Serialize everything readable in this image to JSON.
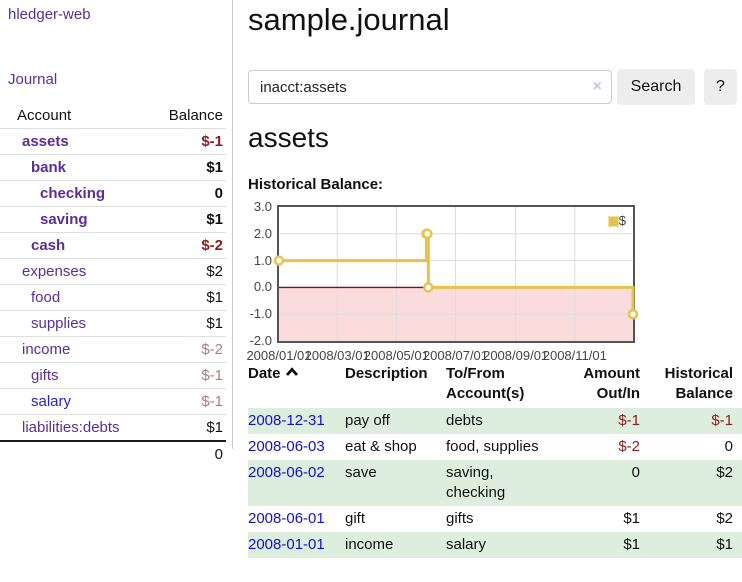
{
  "app": {
    "brand": "hledger-web",
    "journal_link": "Journal"
  },
  "sidebar": {
    "headers": {
      "account": "Account",
      "balance": "Balance"
    },
    "accounts": [
      {
        "label": "assets",
        "balance": "$-1",
        "depth": 0,
        "bold": true,
        "balance_style": "neg",
        "link_style": "purple"
      },
      {
        "label": "bank",
        "balance": "$1",
        "depth": 1,
        "bold": true,
        "balance_style": "pos",
        "link_style": "purple"
      },
      {
        "label": "checking",
        "balance": "0",
        "depth": 2,
        "bold": true,
        "balance_style": "pos",
        "link_style": "purple"
      },
      {
        "label": "saving",
        "balance": "$1",
        "depth": 2,
        "bold": true,
        "balance_style": "pos",
        "link_style": "purple"
      },
      {
        "label": "cash",
        "balance": "$-2",
        "depth": 1,
        "bold": true,
        "balance_style": "neg",
        "link_style": "purple"
      },
      {
        "label": "expenses",
        "balance": "$2",
        "depth": 0,
        "bold": false,
        "balance_style": "pos",
        "link_style": "purple"
      },
      {
        "label": "food",
        "balance": "$1",
        "depth": 1,
        "bold": false,
        "balance_style": "pos",
        "link_style": "purple"
      },
      {
        "label": "supplies",
        "balance": "$1",
        "depth": 1,
        "bold": false,
        "balance_style": "pos",
        "link_style": "purple"
      },
      {
        "label": "income",
        "balance": "$-2",
        "depth": 0,
        "bold": false,
        "balance_style": "dim",
        "link_style": "purple"
      },
      {
        "label": "gifts",
        "balance": "$-1",
        "depth": 1,
        "bold": false,
        "balance_style": "dim",
        "link_style": "purple"
      },
      {
        "label": "salary",
        "balance": "$-1",
        "depth": 1,
        "bold": false,
        "balance_style": "dim",
        "link_style": "blue"
      },
      {
        "label": "liabilities:debts",
        "balance": "$1",
        "depth": 0,
        "bold": false,
        "balance_style": "pos",
        "link_style": "purple"
      }
    ],
    "total": "0"
  },
  "header": {
    "title": "sample.journal"
  },
  "search": {
    "value": "inacct:assets",
    "clear_label": "×",
    "button_label": "Search",
    "help_label": "?"
  },
  "account_page": {
    "heading": "assets",
    "chart_heading": "Historical Balance:"
  },
  "chart_data": {
    "type": "line",
    "style": "step",
    "title": "Historical Balance",
    "series": [
      {
        "name": "$",
        "color": "#e8c24d",
        "points": [
          {
            "date": "2008-01-01",
            "value": 1
          },
          {
            "date": "2008-06-01",
            "value": 2
          },
          {
            "date": "2008-06-02",
            "value": 2
          },
          {
            "date": "2008-06-03",
            "value": 0
          },
          {
            "date": "2008-12-31",
            "value": -1
          }
        ]
      }
    ],
    "x_range": [
      "2008-01-01",
      "2008-12-31"
    ],
    "x_ticks": [
      {
        "date": "2008-01-01",
        "label": "2008/01/01"
      },
      {
        "date": "2008-03-01",
        "label": "2008/03/01"
      },
      {
        "date": "2008-05-01",
        "label": "2008/05/01"
      },
      {
        "date": "2008-07-01",
        "label": "2008/07/01"
      },
      {
        "date": "2008-09-01",
        "label": "2008/09/01"
      },
      {
        "date": "2008-11-01",
        "label": "2008/11/01"
      }
    ],
    "y_ticks": [
      "3.0",
      "2.0",
      "1.0",
      "0.0",
      "-1.0",
      "-2.0"
    ],
    "ylim": [
      -2,
      3
    ],
    "grid": true,
    "legend_position": "top-right",
    "negative_region_color": "#fbdcdc",
    "zero_line_color": "#8b0f0f"
  },
  "register": {
    "headers": {
      "date": "Date",
      "description": "Description",
      "accounts": "To/From Account(s)",
      "amount": "Amount Out/In",
      "balance": "Historical Balance"
    },
    "rows": [
      {
        "date": "2008-12-31",
        "description": "pay off",
        "accounts": "debts",
        "amount": "$-1",
        "amount_style": "neg",
        "balance": "$-1",
        "balance_style": "neg",
        "green": true
      },
      {
        "date": "2008-06-03",
        "description": "eat & shop",
        "accounts": "food, supplies",
        "amount": "$-2",
        "amount_style": "neg",
        "balance": "0",
        "balance_style": "pos",
        "green": false
      },
      {
        "date": "2008-06-02",
        "description": "save",
        "accounts": "saving, checking",
        "amount": "0",
        "amount_style": "pos",
        "balance": "$2",
        "balance_style": "pos",
        "green": true
      },
      {
        "date": "2008-06-01",
        "description": "gift",
        "accounts": "gifts",
        "amount": "$1",
        "amount_style": "pos",
        "balance": "$2",
        "balance_style": "pos",
        "green": false
      },
      {
        "date": "2008-01-01",
        "description": "income",
        "accounts": "salary",
        "amount": "$1",
        "amount_style": "pos",
        "balance": "$1",
        "balance_style": "pos",
        "green": true
      }
    ]
  }
}
